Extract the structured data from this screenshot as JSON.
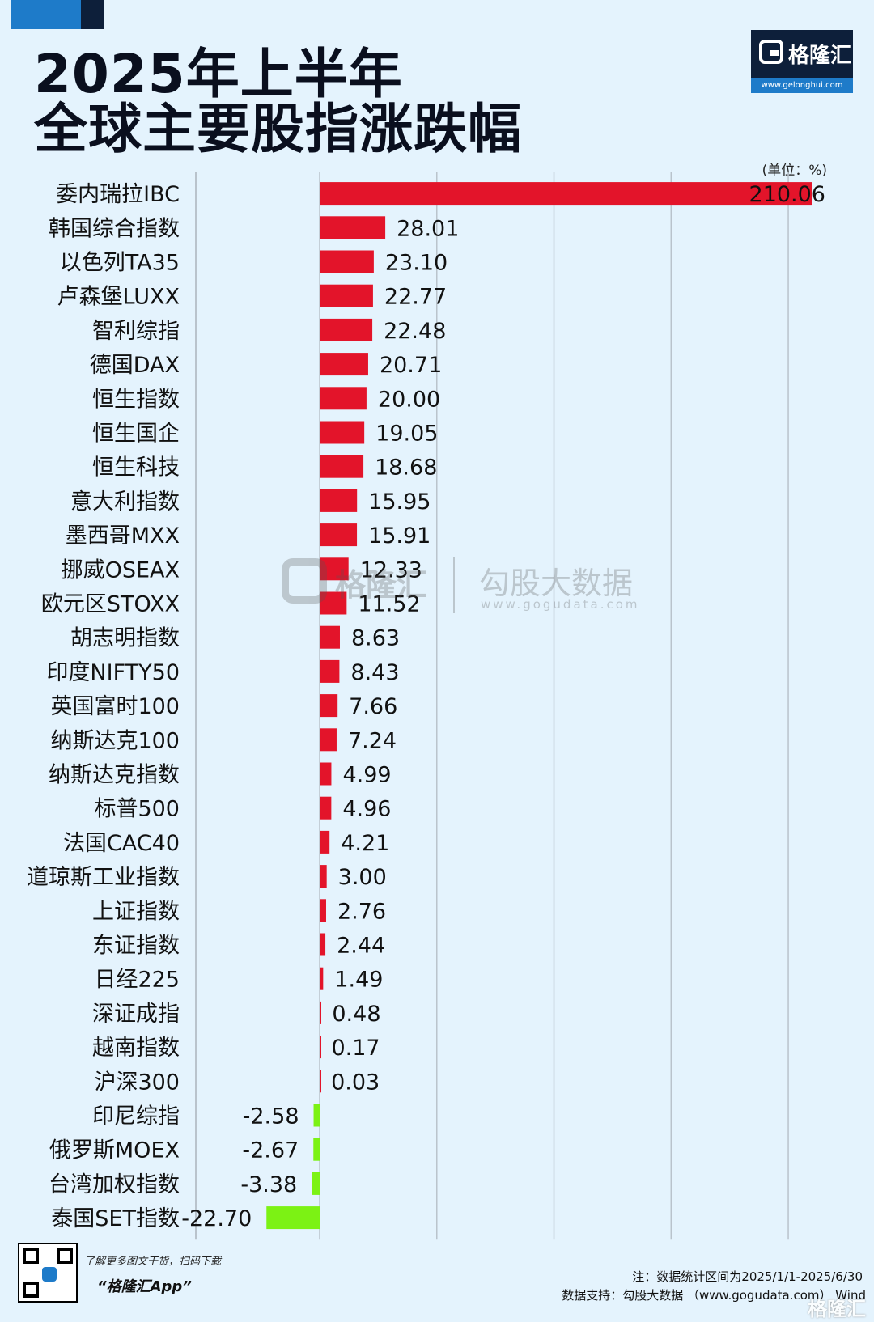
{
  "header": {
    "title_line1": "2025年上半年",
    "title_line2": "全球主要股指涨跌幅",
    "logo_name": "格隆汇",
    "logo_url": "www.gelonghui.com"
  },
  "watermark": {
    "brand1": "格隆汇",
    "brand2": "勾股大数据",
    "url": "www.gogudata.com"
  },
  "chart_data": {
    "type": "bar",
    "orientation": "horizontal",
    "unit_label": "(单位：%)",
    "categories": [
      "委内瑞拉IBC",
      "韩国综合指数",
      "以色列TA35",
      "卢森堡LUXX",
      "智利综指",
      "德国DAX",
      "恒生指数",
      "恒生国企",
      "恒生科技",
      "意大利指数",
      "墨西哥MXX",
      "挪威OSEAX",
      "欧元区STOXX",
      "胡志明指数",
      "印度NIFTY50",
      "英国富时100",
      "纳斯达克100",
      "纳斯达克指数",
      "标普500",
      "法国CAC40",
      "道琼斯工业指数",
      "上证指数",
      "东证指数",
      "日经225",
      "深证成指",
      "越南指数",
      "沪深300",
      "印尼综指",
      "俄罗斯MOEX",
      "台湾加权指数",
      "泰国SET指数"
    ],
    "values": [
      210.06,
      28.01,
      23.1,
      22.77,
      22.48,
      20.71,
      20.0,
      19.05,
      18.68,
      15.95,
      15.91,
      12.33,
      11.52,
      8.63,
      8.43,
      7.66,
      7.24,
      4.99,
      4.96,
      4.21,
      3.0,
      2.76,
      2.44,
      1.49,
      0.48,
      0.17,
      0.03,
      -2.58,
      -2.67,
      -3.38,
      -22.7
    ],
    "value_labels": [
      "210.06",
      "28.01",
      "23.10",
      "22.77",
      "22.48",
      "20.71",
      "20.00",
      "19.05",
      "18.68",
      "15.95",
      "15.91",
      "12.33",
      "11.52",
      "8.63",
      "8.43",
      "7.66",
      "7.24",
      "4.99",
      "4.96",
      "4.21",
      "3.00",
      "2.76",
      "2.44",
      "1.49",
      "0.48",
      "0.17",
      "0.03",
      "-2.58",
      "-2.67",
      "-3.38",
      "-22.70"
    ],
    "xlim": [
      -55,
      210
    ],
    "grid": true,
    "positive_color": "#e3142a",
    "negative_color": "#7cf214"
  },
  "footer": {
    "promo_line1": "了解更多图文干货，扫码下载",
    "promo_line2": "“格隆汇App”",
    "note": "注：数据统计区间为2025/1/1-2025/6/30",
    "source": "数据支持：勾股大数据 （www.gogudata.com） Wind",
    "logo_name": "格隆汇"
  }
}
